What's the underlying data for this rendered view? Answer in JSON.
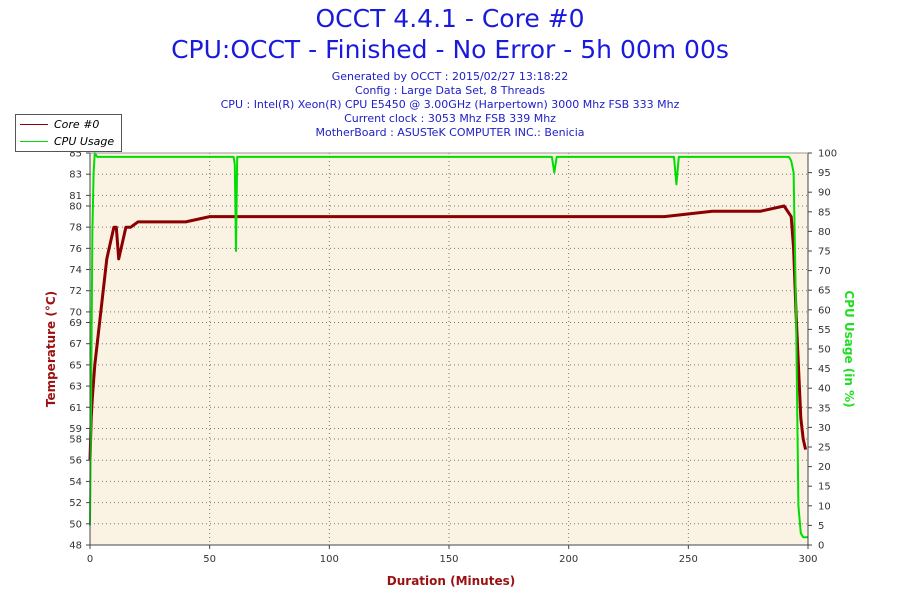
{
  "header": {
    "title": "OCCT 4.4.1 - Core #0",
    "subtitle": "CPU:OCCT - Finished - No Error - 5h 00m 00s",
    "info_lines": [
      "Generated by OCCT : 2015/02/27 13:18:22",
      "Config : Large Data Set, 8 Threads",
      "CPU : Intel(R) Xeon(R) CPU E5450 @ 3.00GHz (Harpertown) 3000 Mhz FSB 333 Mhz",
      "Current clock : 3053 Mhz FSB 339 Mhz",
      "MotherBoard : ASUSTeK COMPUTER INC.: Benicia"
    ]
  },
  "legend": {
    "items": [
      {
        "label": "Core #0",
        "color": "#8b0000"
      },
      {
        "label": "CPU Usage",
        "color": "#00dd00"
      }
    ]
  },
  "chart_data": {
    "type": "line",
    "xlabel": "Duration (Minutes)",
    "ylabel_left": "Temperature (°C)",
    "ylabel_right": "CPU Usage (in %)",
    "xlim": [
      0,
      300
    ],
    "ylim_left": [
      48,
      85
    ],
    "ylim_right": [
      0,
      100
    ],
    "x_ticks": [
      0,
      50,
      100,
      150,
      200,
      250,
      300
    ],
    "y_ticks_left": [
      48,
      50,
      52,
      54,
      56,
      58,
      59,
      61,
      63,
      65,
      67,
      69,
      70,
      72,
      74,
      76,
      78,
      80,
      81,
      83,
      85
    ],
    "y_ticks_right": [
      0,
      5,
      10,
      15,
      20,
      25,
      30,
      35,
      40,
      45,
      50,
      55,
      60,
      65,
      70,
      75,
      80,
      85,
      90,
      95,
      100
    ],
    "grid": true,
    "legend_position": "top-left",
    "series": [
      {
        "name": "Core #0",
        "axis": "left",
        "color": "#8b0000",
        "x": [
          0,
          0.5,
          1,
          2,
          3,
          4,
          5,
          6,
          7,
          8,
          9,
          10,
          11,
          12,
          13,
          14,
          15,
          17,
          20,
          30,
          40,
          50,
          60,
          80,
          100,
          120,
          140,
          160,
          180,
          200,
          220,
          240,
          260,
          280,
          290,
          293,
          294,
          295,
          296,
          297,
          298,
          299
        ],
        "y": [
          56,
          60,
          62,
          65,
          67,
          69,
          71,
          73,
          75,
          76,
          77,
          78,
          78,
          75,
          76,
          77,
          78,
          78,
          78.5,
          78.5,
          78.5,
          79,
          79,
          79,
          79,
          79,
          79,
          79,
          79,
          79,
          79,
          79,
          79.5,
          79.5,
          80,
          79,
          76,
          70,
          65,
          60,
          58,
          57
        ]
      },
      {
        "name": "CPU Usage",
        "axis": "right",
        "color": "#00dd00",
        "x": [
          0,
          0.5,
          1,
          1.5,
          2,
          3,
          10,
          30,
          60,
          60.5,
          61,
          61.5,
          100,
          150,
          193,
          194,
          195,
          200,
          244,
          245,
          246,
          250,
          280,
          292,
          293,
          294,
          295,
          296,
          297,
          298,
          299,
          300
        ],
        "y": [
          5,
          40,
          80,
          95,
          100,
          99,
          99,
          99,
          99,
          97,
          75,
          99,
          99,
          99,
          99,
          95,
          99,
          99,
          99,
          92,
          99,
          99,
          99,
          99,
          98,
          95,
          60,
          10,
          3,
          2,
          2,
          2
        ]
      }
    ]
  }
}
